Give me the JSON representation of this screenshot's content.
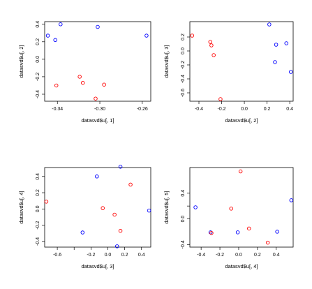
{
  "chart_data": [
    {
      "type": "scatter",
      "xlabel": "datasvd$u[, 1]",
      "ylabel": "datasvd$u[, 2]",
      "xlim": [
        -0.352,
        -0.252
      ],
      "ylim": [
        -0.48,
        0.43
      ],
      "xticks": [
        -0.34,
        -0.3,
        -0.26
      ],
      "xtick_labels": [
        "-0.34",
        "-0.30",
        "-0.26"
      ],
      "yticks": [
        -0.4,
        -0.2,
        0.0,
        0.2,
        0.4
      ],
      "ytick_labels": [
        "-0.4",
        "-0.2",
        "0.0",
        "0.2",
        "0.4"
      ],
      "series": [
        {
          "color": "#0000ff",
          "x": [
            -0.349,
            -0.342,
            -0.337,
            -0.302,
            -0.256
          ],
          "y": [
            0.27,
            0.22,
            0.4,
            0.37,
            0.27
          ]
        },
        {
          "color": "#ff0000",
          "x": [
            -0.341,
            -0.319,
            -0.316,
            -0.304,
            -0.296
          ],
          "y": [
            -0.3,
            -0.2,
            -0.27,
            -0.45,
            -0.29
          ]
        }
      ]
    },
    {
      "type": "scatter",
      "xlabel": "datasvd$u[, 2]",
      "ylabel": "datasvd$u[, 3]",
      "xlim": [
        -0.48,
        0.43
      ],
      "ylim": [
        -0.72,
        0.42
      ],
      "xticks": [
        -0.4,
        -0.2,
        0.0,
        0.2,
        0.4
      ],
      "xtick_labels": [
        "-0.4",
        "-0.2",
        "0.0",
        "0.2",
        "0.4"
      ],
      "yticks": [
        -0.6,
        -0.4,
        -0.2,
        0.0,
        0.2
      ],
      "ytick_labels": [
        "-0.6",
        "-0.4",
        "-0.2",
        "0.0",
        "0.2"
      ],
      "series": [
        {
          "color": "#0000ff",
          "x": [
            0.22,
            0.28,
            0.27,
            0.37,
            0.41
          ],
          "y": [
            0.38,
            0.09,
            -0.16,
            0.11,
            -0.3
          ]
        },
        {
          "color": "#ff0000",
          "x": [
            -0.46,
            -0.3,
            -0.29,
            -0.27,
            -0.21
          ],
          "y": [
            0.22,
            0.13,
            0.08,
            -0.06,
            -0.69
          ]
        }
      ]
    },
    {
      "type": "scatter",
      "xlabel": "datasvd$u[, 3]",
      "ylabel": "datasvd$u[, 4]",
      "xlim": [
        -0.75,
        0.51
      ],
      "ylim": [
        -0.47,
        0.51
      ],
      "xticks": [
        -0.6,
        -0.4,
        -0.2,
        0.0,
        0.2,
        0.4
      ],
      "xtick_labels": [
        "-0.6",
        "",
        "-0.2",
        "0.0",
        "0.2",
        "0.4"
      ],
      "yticks": [
        -0.4,
        -0.2,
        0.0,
        0.2,
        0.4
      ],
      "ytick_labels": [
        "-0.4",
        "-0.2",
        "0.0",
        "0.2",
        "0.4"
      ],
      "series": [
        {
          "color": "#0000ff",
          "x": [
            -0.13,
            0.15,
            -0.3,
            0.49,
            0.11
          ],
          "y": [
            0.4,
            0.52,
            -0.29,
            -0.02,
            -0.46
          ]
        },
        {
          "color": "#ff0000",
          "x": [
            -0.73,
            0.27,
            -0.06,
            0.08,
            0.15
          ],
          "y": [
            0.09,
            0.3,
            0.01,
            -0.07,
            -0.27
          ]
        }
      ]
    },
    {
      "type": "scatter",
      "xlabel": "datasvd$u[, 4]",
      "ylabel": "datasvd$u[, 5]",
      "xlim": [
        -0.52,
        0.58
      ],
      "ylim": [
        -0.44,
        0.8
      ],
      "xticks": [
        -0.4,
        -0.2,
        0.0,
        0.2,
        0.4
      ],
      "xtick_labels": [
        "-0.4",
        "-0.2",
        "0.0",
        "0.2",
        "0.4"
      ],
      "yticks": [
        -0.4,
        0.0,
        0.2,
        0.4
      ],
      "ytick_labels": [
        "-0.4",
        "0.0",
        "",
        "0.4"
      ],
      "series": [
        {
          "color": "#0000ff",
          "x": [
            -0.46,
            -0.3,
            -0.01,
            0.41,
            0.56
          ],
          "y": [
            0.18,
            -0.21,
            -0.21,
            -0.2,
            0.29
          ]
        },
        {
          "color": "#ff0000",
          "x": [
            -0.29,
            -0.08,
            0.02,
            0.11,
            0.31
          ],
          "y": [
            -0.22,
            0.16,
            0.74,
            -0.15,
            -0.37
          ]
        }
      ]
    }
  ]
}
